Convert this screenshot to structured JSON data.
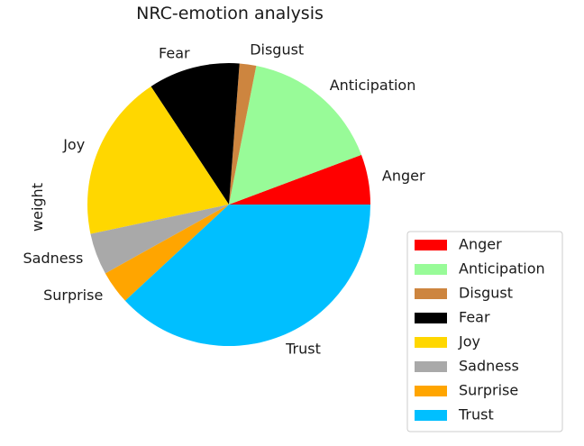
{
  "chart_data": {
    "type": "pie",
    "title": "NRC-emotion analysis",
    "ylabel": "weight",
    "start_angle_deg": 0,
    "direction": "counterclockwise",
    "legend_position": "lower-right",
    "slices": [
      {
        "label": "Anger",
        "value": 6,
        "color": "#ff0000"
      },
      {
        "label": "Anticipation",
        "value": 17,
        "color": "#98fb98"
      },
      {
        "label": "Disgust",
        "value": 2,
        "color": "#cd853f"
      },
      {
        "label": "Fear",
        "value": 11,
        "color": "#000000"
      },
      {
        "label": "Joy",
        "value": 20,
        "color": "#ffd700"
      },
      {
        "label": "Sadness",
        "value": 5,
        "color": "#a9a9a9"
      },
      {
        "label": "Surprise",
        "value": 4,
        "color": "#ffa500"
      },
      {
        "label": "Trust",
        "value": 40,
        "color": "#00bfff"
      }
    ]
  }
}
